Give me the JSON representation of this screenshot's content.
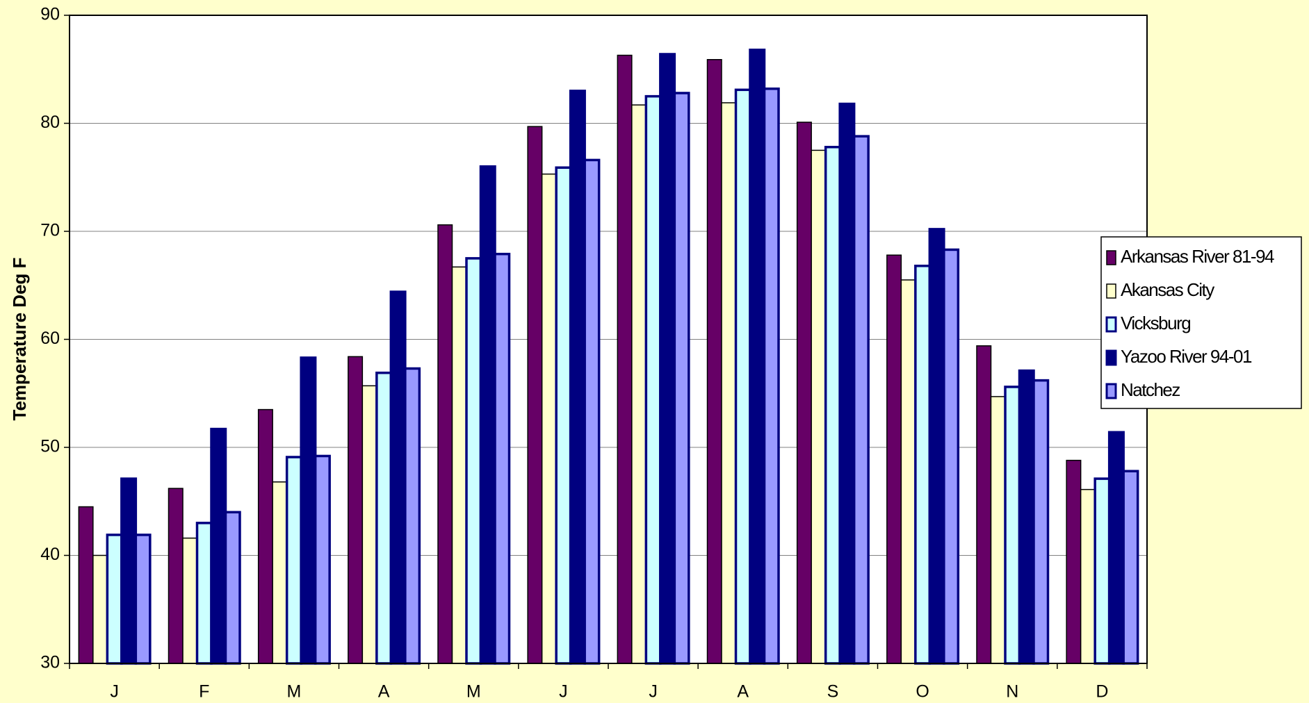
{
  "chart_data": {
    "type": "bar",
    "ylabel": "Temperature Deg F",
    "categories": [
      "J",
      "F",
      "M",
      "A",
      "M",
      "J",
      "J",
      "A",
      "S",
      "O",
      "N",
      "D"
    ],
    "series": [
      {
        "name": "Arkansas River 81-94",
        "color": "#660066",
        "edgecolor": "#000000",
        "values": [
          44.5,
          46.2,
          53.5,
          58.4,
          70.6,
          79.7,
          86.3,
          85.9,
          80.1,
          67.8,
          59.4,
          48.8
        ]
      },
      {
        "name": "Akansas City",
        "color": "#ffffcc",
        "edgecolor": "#000000",
        "values": [
          40.0,
          41.6,
          46.8,
          55.7,
          66.7,
          75.3,
          81.7,
          81.9,
          77.5,
          65.5,
          54.7,
          46.1
        ]
      },
      {
        "name": "Vicksburg",
        "color": "#ccffff",
        "edgecolor": "#000080",
        "values": [
          41.9,
          43.0,
          49.1,
          56.9,
          67.5,
          75.9,
          82.5,
          83.1,
          77.8,
          66.8,
          55.6,
          47.1
        ]
      },
      {
        "name": "Yazoo River 94-01",
        "color": "#000080",
        "edgecolor": "#000080",
        "values": [
          47.1,
          51.7,
          58.3,
          64.4,
          76.0,
          83.0,
          86.4,
          86.8,
          81.8,
          70.2,
          57.1,
          51.4
        ]
      },
      {
        "name": "Natchez",
        "color": "#9999ff",
        "edgecolor": "#000080",
        "values": [
          41.9,
          44.0,
          49.2,
          57.3,
          67.9,
          76.6,
          82.8,
          83.2,
          78.8,
          68.3,
          56.2,
          47.8
        ]
      }
    ],
    "ylim": [
      30,
      90
    ],
    "yticks": [
      30,
      40,
      50,
      60,
      70,
      80,
      90
    ],
    "grid": true,
    "legend": "right"
  }
}
